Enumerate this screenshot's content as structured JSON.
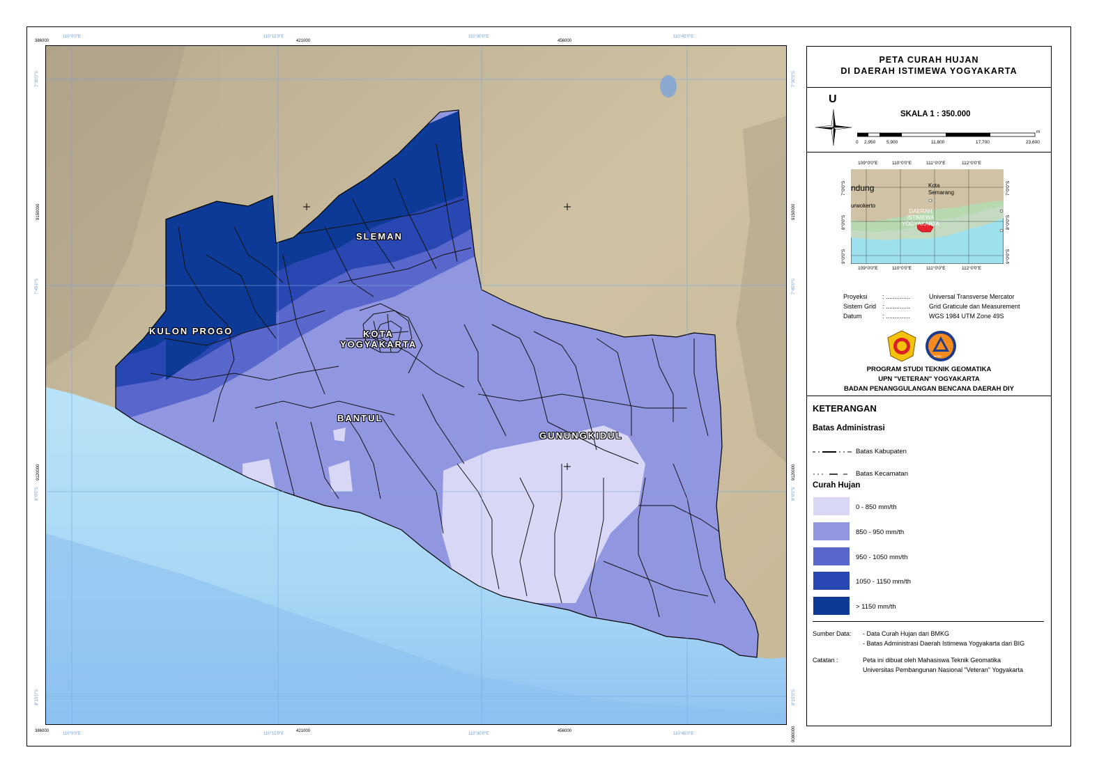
{
  "title": {
    "line1": "PETA CURAH HUJAN",
    "line2": "DI  DAERAH ISTIMEWA YOGYAKARTA"
  },
  "north_arrow": {
    "label": "U",
    "icon": "compass-rose-icon"
  },
  "scale": {
    "label": "SKALA 1 : 350.000",
    "unit": "m",
    "ticks": [
      "0",
      "2,950",
      "5,900",
      "11,800",
      "17,700",
      "23,600"
    ]
  },
  "inset": {
    "top_lon": [
      "109°0'0\"E",
      "110°0'0\"E",
      "111°0'0\"E",
      "112°0'0\"E"
    ],
    "bottom_lon": [
      "109°0'0\"E",
      "110°0'0\"E",
      "111°0'0\"E",
      "112°0'0\"E"
    ],
    "left_lat": [
      "7°0'0\"S",
      "8°0'0\"S",
      "9°0'0\"S"
    ],
    "right_lat": [
      "7°0'0\"S",
      "8°0'0\"S",
      "9°0'0\"S"
    ],
    "places": {
      "bandung": "ndung",
      "semarang": "Kota\nSemarang",
      "purwokerto": "urwokerto",
      "diy": "DAERAH\nISTIMEWA\nYOGYAKARTA"
    }
  },
  "projection_info": [
    {
      "key": "Proyeksi",
      "sep": ":  ..............",
      "value": "Universal Transverse Mercator"
    },
    {
      "key": "Sistem Grid",
      "sep": ":  ..............",
      "value": "Grid Graticule dan Measurement"
    },
    {
      "key": "Datum",
      "sep": ":  ..............",
      "value": "WGS 1984 UTM Zone 49S"
    }
  ],
  "institution": {
    "line1": "PROGRAM STUDI TEKNIK GEOMATIKA",
    "line2": "UPN \"VETERAN\" YOGYAKARTA",
    "line3": "BADAN PENANGGULANGAN BENCANA DAERAH DIY",
    "logo2_text": "BPBD"
  },
  "legend": {
    "title": "KETERANGAN",
    "admin_title": "Batas Administrasi",
    "admin_items": [
      "Batas Kabupaten",
      "Batas Kecamatan"
    ],
    "rain_title": "Curah Hujan",
    "rain_classes": [
      {
        "label": "0 - 850 mm/th",
        "color": "#d8d8f6"
      },
      {
        "label": "850 - 950 mm/th",
        "color": "#9196e0"
      },
      {
        "label": "950 - 1050 mm/th",
        "color": "#5966cc"
      },
      {
        "label": "1050 - 1150 mm/th",
        "color": "#2947b2"
      },
      {
        "label": "> 1150 mm/th",
        "color": "#0d3a96"
      }
    ]
  },
  "sources": {
    "label": "Sumber Data:",
    "items": [
      "- Data Curah Hujan dari BMKG",
      "- Batas Administrasi Daerah Istimewa Yogyakarta dari BIG"
    ],
    "note_label": "Catatan  :",
    "note_line1": "Peta ini dibuat oleh Mahasiswa Teknik Geomatika",
    "note_line2": "Universitas Pembangunan Nasional \"Veteran\" Yogyakarta"
  },
  "map": {
    "region_labels": {
      "sleman": "SLEMAN",
      "kulon_progo": "KULON PROGO",
      "kota1": "KOTA",
      "kota2": "YOGYAKARTA",
      "bantul": "BANTUL",
      "gunungkidul": "GUNUNGKIDUL"
    },
    "utm_x": [
      "386000",
      "421000",
      "456000",
      "386000",
      "421000",
      "456000"
    ],
    "utm_y": [
      "9150000",
      "9120000",
      "9150000",
      "9120000",
      "9080000"
    ],
    "geo_lon_top": [
      "110°0'0\"E",
      "110°15'0\"E",
      "110°30'0\"E",
      "110°45'0\"E"
    ],
    "geo_lon_bottom": [
      "110°0'0\"E",
      "110°15'0\"E",
      "110°30'0\"E",
      "110°45'0\"E"
    ],
    "geo_lat_left": [
      "7°30'0\"S",
      "7°45'0\"S",
      "8°0'0\"S",
      "8°15'0\"S"
    ],
    "geo_lat_right": [
      "7°30'0\"S",
      "7°45'0\"S",
      "8°0'0\"S",
      "8°15'0\"S"
    ]
  }
}
